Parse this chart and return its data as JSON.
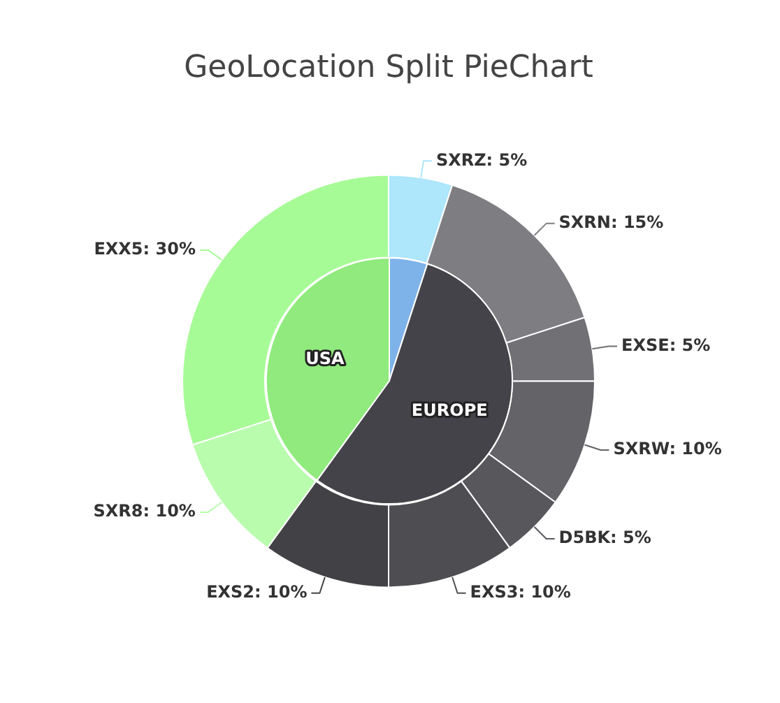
{
  "chart_data": [
    {
      "type": "donut",
      "title": "GeoLocation Split PieChart",
      "legend": false,
      "categories": [
        "SXRZ: 5%",
        "SXRN: 15%",
        "EXSE: 5%",
        "SXRW: 10%",
        "D5BK: 5%",
        "EXS3: 10%",
        "EXS2: 10%",
        "SXR8: 10%",
        "EXX5: 30%"
      ],
      "values": [
        5,
        15,
        5,
        10,
        5,
        10,
        10,
        10,
        30
      ],
      "colors": [
        "#aee6fb",
        "#7e7d82",
        "#707075",
        "#646368",
        "#58575c",
        "#4e4e52",
        "#424246",
        "#b9fcae",
        "#a7fb96"
      ]
    },
    {
      "type": "pie",
      "legend": false,
      "categories": [
        null,
        "EUROPE",
        "USA"
      ],
      "values": [
        5,
        55,
        40
      ],
      "colors": [
        "#7eb3ea",
        "#444349",
        "#90ea7d"
      ]
    }
  ]
}
